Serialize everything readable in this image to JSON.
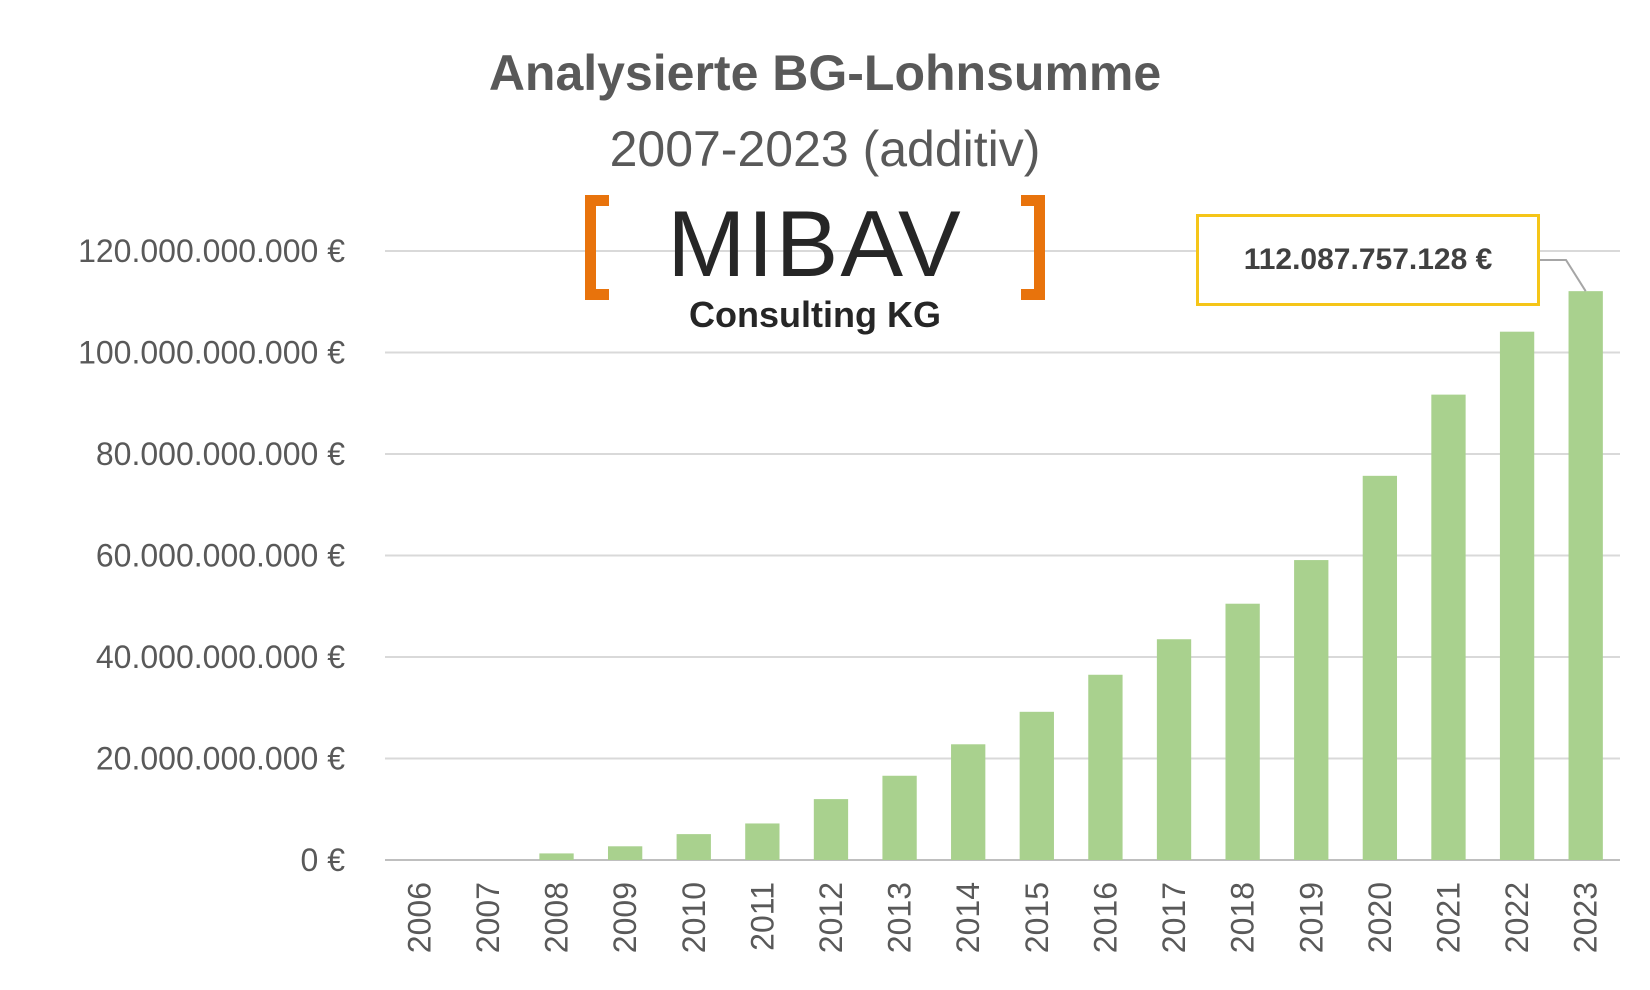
{
  "chart_data": {
    "type": "bar",
    "title": "Analysierte BG-Lohnsumme",
    "subtitle": "2007-2023 (additiv)",
    "categories": [
      "2006",
      "2007",
      "2008",
      "2009",
      "2010",
      "2011",
      "2012",
      "2013",
      "2014",
      "2015",
      "2016",
      "2017",
      "2018",
      "2019",
      "2020",
      "2021",
      "2022",
      "2023"
    ],
    "values": [
      0,
      0,
      1300000000,
      2700000000,
      5100000000,
      7200000000,
      12000000000,
      16600000000,
      22800000000,
      29200000000,
      36500000000,
      43500000000,
      50500000000,
      59100000000,
      75700000000,
      91700000000,
      104100000000,
      112087757128
    ],
    "ylim": [
      0,
      120000000000
    ],
    "yticks": [
      0,
      20000000000,
      40000000000,
      60000000000,
      80000000000,
      100000000000,
      120000000000
    ],
    "ytick_labels": [
      "0 €",
      "20.000.000.000 €",
      "40.000.000.000 €",
      "60.000.000.000 €",
      "80.000.000.000 €",
      "100.000.000.000 €",
      "120.000.000.000 €"
    ],
    "xlabel": "",
    "ylabel": "",
    "grid": true,
    "legend": "none",
    "bar_color": "#a9d18e",
    "grid_color": "#d9d9d9",
    "text_color": "#595959",
    "data_label": {
      "category": "2023",
      "text": "112.087.757.128 €",
      "border_color": "#f5c518"
    }
  },
  "logo": {
    "name": "MIBAV",
    "subtitle": "Consulting KG",
    "bracket_color": "#e8730c"
  }
}
